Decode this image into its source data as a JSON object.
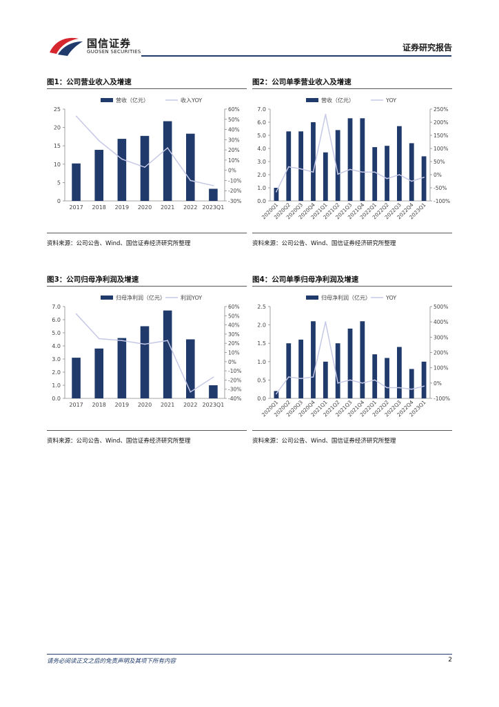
{
  "header": {
    "logo_cn": "国信证券",
    "logo_en": "GUOSEN SECURITIES",
    "report_type": "证券研究报告",
    "colors": {
      "brand_blue": "#1f3a6b",
      "brand_red": "#d6262e"
    }
  },
  "colors": {
    "bar": "#1f3a6b",
    "line": "#c5c8e6"
  },
  "chart_data": [
    {
      "id": "fig1",
      "type": "bar",
      "title": "图1：公司营业收入及增速",
      "legend_bar": "营收（亿元）",
      "legend_line": "收入YOY",
      "categories": [
        "2017",
        "2018",
        "2019",
        "2020",
        "2021",
        "2022",
        "2023Q1"
      ],
      "values": [
        10.2,
        13.9,
        16.9,
        17.7,
        21.7,
        18.3,
        3.3
      ],
      "line_values": [
        53,
        29,
        11,
        3,
        22,
        -10,
        -15
      ],
      "ylim": [
        0,
        25
      ],
      "yticks": [
        0,
        5,
        10,
        15,
        20,
        25
      ],
      "ylim2": [
        -30,
        60
      ],
      "yticks2": [
        -30,
        -20,
        -10,
        0,
        10,
        20,
        30,
        40,
        50,
        60
      ],
      "ytick_labels2": [
        "-30%",
        "-20%",
        "-10%",
        "0%",
        "10%",
        "20%",
        "30%",
        "40%",
        "50%",
        "60%"
      ],
      "ytick_decimals": 0,
      "x_rotate": false,
      "source": "资料来源：公司公告、Wind、国信证券经济研究所整理"
    },
    {
      "id": "fig2",
      "type": "bar",
      "title": "图2：公司单季营业收入及增速",
      "legend_bar": "营收（亿元）",
      "legend_line": "YOY",
      "categories": [
        "2020Q1",
        "2020Q2",
        "2020Q3",
        "2020Q4",
        "2021Q1",
        "2021Q2",
        "2021Q3",
        "2021Q4",
        "2022Q1",
        "2022Q2",
        "2022Q3",
        "2022Q4",
        "2023Q1"
      ],
      "values": [
        1.0,
        5.3,
        5.3,
        6.0,
        3.7,
        5.4,
        6.3,
        6.3,
        4.1,
        4.2,
        5.7,
        4.4,
        3.4
      ],
      "line_values": [
        -65,
        30,
        22,
        10,
        230,
        2,
        20,
        10,
        10,
        -15,
        0,
        -25,
        -10
      ],
      "ylim": [
        0,
        7
      ],
      "yticks": [
        0,
        1,
        2,
        3,
        4,
        5,
        6,
        7
      ],
      "ylim2": [
        -100,
        250
      ],
      "yticks2": [
        -100,
        -50,
        0,
        50,
        100,
        150,
        200,
        250
      ],
      "ytick_labels2": [
        "-100%",
        "-50%",
        "0%",
        "50%",
        "100%",
        "150%",
        "200%",
        "250%"
      ],
      "ytick_decimals": 1,
      "x_rotate": true,
      "source": "资料来源：公司公告、Wind、国信证券经济研究所整理"
    },
    {
      "id": "fig3",
      "type": "bar",
      "title": "图3：公司归母净利润及增速",
      "legend_bar": "归母净利润（亿元）",
      "legend_line": "利润YOY",
      "categories": [
        "2017",
        "2018",
        "2019",
        "2020",
        "2021",
        "2022",
        "2023Q1"
      ],
      "values": [
        3.1,
        3.8,
        4.6,
        5.5,
        6.7,
        4.5,
        1.0
      ],
      "line_values": [
        52,
        25,
        23,
        19,
        23,
        -33,
        -17
      ],
      "ylim": [
        0,
        7
      ],
      "yticks": [
        0,
        1,
        2,
        3,
        4,
        5,
        6,
        7
      ],
      "ylim2": [
        -40,
        60
      ],
      "yticks2": [
        -40,
        -30,
        -20,
        -10,
        0,
        10,
        20,
        30,
        40,
        50,
        60
      ],
      "ytick_labels2": [
        "-40%",
        "-30%",
        "-20%",
        "-10%",
        "0%",
        "10%",
        "20%",
        "30%",
        "40%",
        "50%",
        "60%"
      ],
      "ytick_decimals": 1,
      "x_rotate": false,
      "source": "资料来源：公司公告、Wind、国信证券经济研究所整理"
    },
    {
      "id": "fig4",
      "type": "bar",
      "title": "图4：公司单季归母净利润及增速",
      "legend_bar": "归母净利润（亿元）",
      "legend_line": "YOY",
      "categories": [
        "2020Q1",
        "2020Q2",
        "2020Q3",
        "2020Q4",
        "2021Q1",
        "2021Q2",
        "2021Q3",
        "2021Q4",
        "2022Q1",
        "2022Q2",
        "2022Q3",
        "2022Q4",
        "2023Q1"
      ],
      "values": [
        0.2,
        1.5,
        1.6,
        2.1,
        1.0,
        1.5,
        1.9,
        2.1,
        1.2,
        1.1,
        1.4,
        0.8,
        1.0
      ],
      "line_values": [
        -70,
        40,
        30,
        40,
        400,
        0,
        20,
        0,
        20,
        -30,
        -30,
        -40,
        -20
      ],
      "ylim": [
        0,
        2.5
      ],
      "yticks": [
        0,
        0.5,
        1.0,
        1.5,
        2.0,
        2.5
      ],
      "ylim2": [
        -100,
        500
      ],
      "yticks2": [
        -100,
        0,
        100,
        200,
        300,
        400,
        500
      ],
      "ytick_labels2": [
        "-100%",
        "0%",
        "100%",
        "200%",
        "300%",
        "400%",
        "500%"
      ],
      "ytick_decimals": 1,
      "x_rotate": true,
      "source": "资料来源：公司公告、Wind、国信证券经济研究所整理"
    }
  ],
  "footer": {
    "disclaimer": "请务必阅读正文之后的免责声明及其项下所有内容",
    "page_number": "2"
  }
}
